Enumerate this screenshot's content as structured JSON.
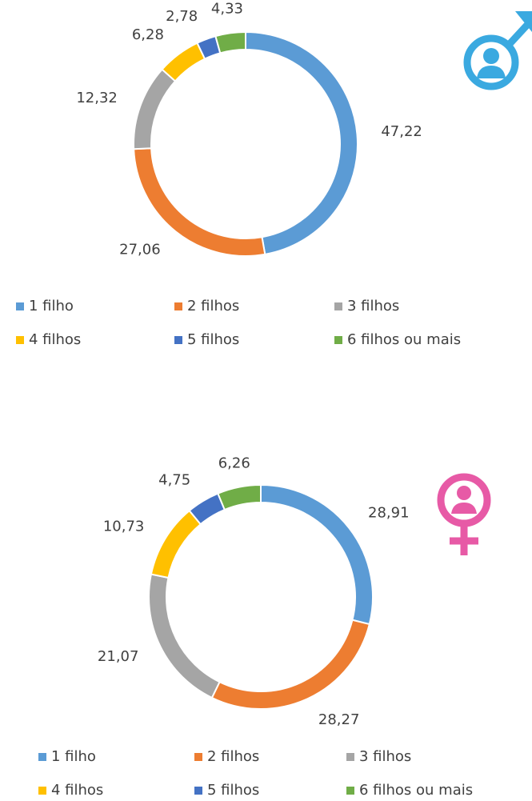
{
  "chart_data": [
    {
      "type": "donut",
      "categories": [
        "1 filho",
        "2 filhos",
        "3 filhos",
        "4 filhos",
        "5 filhos",
        "6 filhos ou mais"
      ],
      "values": [
        47.22,
        27.06,
        12.32,
        6.28,
        2.78,
        4.33
      ],
      "value_labels": [
        "47,22",
        "27,06",
        "12,32",
        "6,28",
        "2,78",
        "4,33"
      ],
      "colors": [
        "#5b9bd5",
        "#ed7d31",
        "#a5a5a5",
        "#ffc000",
        "#4472c4",
        "#70ad47"
      ]
    },
    {
      "type": "donut",
      "categories": [
        "1 filho",
        "2 filhos",
        "3 filhos",
        "4 filhos",
        "5 filhos",
        "6 filhos ou mais"
      ],
      "values": [
        28.91,
        28.27,
        21.07,
        10.73,
        4.75,
        6.26
      ],
      "value_labels": [
        "28,91",
        "28,27",
        "21,07",
        "10,73",
        "4,75",
        "6,26"
      ],
      "colors": [
        "#5b9bd5",
        "#ed7d31",
        "#a5a5a5",
        "#ffc000",
        "#4472c4",
        "#70ad47"
      ]
    }
  ]
}
